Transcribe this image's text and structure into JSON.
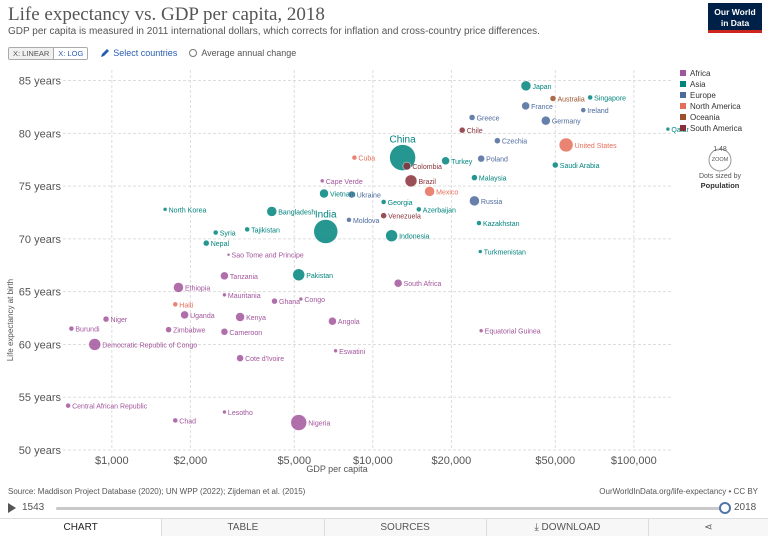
{
  "header": {
    "title": "Life expectancy vs. GDP per capita, 2018",
    "subtitle": "GDP per capita is measured in 2011 international dollars, which corrects for inflation and cross-country price differences.",
    "logo_line1": "Our World",
    "logo_line2": "in Data"
  },
  "controls": {
    "linear_label": "X: LINEAR",
    "log_label": "X: LOG",
    "select_countries": "Select countries",
    "avg_change": "Average annual change"
  },
  "legend": {
    "items": [
      {
        "name": "Africa",
        "color": "#a2559c"
      },
      {
        "name": "Asia",
        "color": "#00847e"
      },
      {
        "name": "Europe",
        "color": "#4c6a9c"
      },
      {
        "name": "North America",
        "color": "#e56e5a"
      },
      {
        "name": "Oceania",
        "color": "#9a5129"
      },
      {
        "name": "South America",
        "color": "#883039"
      }
    ],
    "size_value": "1.48",
    "size_unit": "ZOOM",
    "size_note_line1": "Dots sized by",
    "size_note_line2": "Population"
  },
  "footer": {
    "source": "Source: Maddison Project Database (2020); UN WPP (2022); Zijdeman et al. (2015)",
    "url": "OurWorldInData.org/life-expectancy • CC BY"
  },
  "timeline": {
    "start": "1543",
    "end": "2018"
  },
  "tabs": {
    "chart": "CHART",
    "table": "TABLE",
    "sources": "SOURCES",
    "download": "DOWNLOAD"
  },
  "chart_data": {
    "type": "scatter",
    "xscale": "log",
    "xlabel": "GDP per capita",
    "ylabel": "Life expectancy at birth",
    "xlim": [
      650,
      140000
    ],
    "ylim": [
      50,
      86
    ],
    "xticks": [
      1000,
      2000,
      5000,
      10000,
      20000,
      50000,
      100000
    ],
    "xtick_labels": [
      "$1,000",
      "$2,000",
      "$5,000",
      "$10,000",
      "$20,000",
      "$50,000",
      "$100,000"
    ],
    "yticks": [
      50,
      55,
      60,
      65,
      70,
      75,
      80,
      85
    ],
    "ytick_labels": [
      "50 years",
      "55 years",
      "60 years",
      "65 years",
      "70 years",
      "75 years",
      "80 years",
      "85 years"
    ],
    "grid": true,
    "legend_position": "right",
    "points": [
      {
        "label": "Japan",
        "x": 38600,
        "y": 84.5,
        "region": "Asia",
        "size": 5
      },
      {
        "label": "Australia",
        "x": 49000,
        "y": 83.3,
        "region": "Oceania",
        "size": 3
      },
      {
        "label": "Singapore",
        "x": 68000,
        "y": 83.4,
        "region": "Asia",
        "size": 2.5
      },
      {
        "label": "Ireland",
        "x": 64000,
        "y": 82.2,
        "region": "Europe",
        "size": 2.5
      },
      {
        "label": "France",
        "x": 38500,
        "y": 82.6,
        "region": "Europe",
        "size": 4
      },
      {
        "label": "Germany",
        "x": 46000,
        "y": 81.2,
        "region": "Europe",
        "size": 4.5
      },
      {
        "label": "Greece",
        "x": 24000,
        "y": 81.5,
        "region": "Europe",
        "size": 3
      },
      {
        "label": "Qatar",
        "x": 135000,
        "y": 80.4,
        "region": "Asia",
        "size": 2
      },
      {
        "label": "Chile",
        "x": 22000,
        "y": 80.3,
        "region": "South America",
        "size": 3
      },
      {
        "label": "United States",
        "x": 55000,
        "y": 78.9,
        "region": "North America",
        "size": 7
      },
      {
        "label": "Czechia",
        "x": 30000,
        "y": 79.3,
        "region": "Europe",
        "size": 3
      },
      {
        "label": "China",
        "x": 13000,
        "y": 77.7,
        "region": "Asia",
        "size": 13
      },
      {
        "label": "Cuba",
        "x": 8500,
        "y": 77.7,
        "region": "North America",
        "size": 2.5
      },
      {
        "label": "Turkey",
        "x": 19000,
        "y": 77.4,
        "region": "Asia",
        "size": 4
      },
      {
        "label": "Poland",
        "x": 26000,
        "y": 77.6,
        "region": "Europe",
        "size": 3.5
      },
      {
        "label": "Saudi Arabia",
        "x": 50000,
        "y": 77.0,
        "region": "Asia",
        "size": 3
      },
      {
        "label": "Colombia",
        "x": 13500,
        "y": 76.9,
        "region": "South America",
        "size": 4
      },
      {
        "label": "Brazil",
        "x": 14000,
        "y": 75.5,
        "region": "South America",
        "size": 6
      },
      {
        "label": "Cape Verde",
        "x": 6400,
        "y": 75.5,
        "region": "Africa",
        "size": 2
      },
      {
        "label": "Malaysia",
        "x": 24500,
        "y": 75.8,
        "region": "Asia",
        "size": 3
      },
      {
        "label": "North Korea",
        "x": 1600,
        "y": 72.8,
        "region": "Asia",
        "size": 2
      },
      {
        "label": "Vietnam",
        "x": 6500,
        "y": 74.3,
        "region": "Asia",
        "size": 4.5
      },
      {
        "label": "Ukraine",
        "x": 8300,
        "y": 74.2,
        "region": "Europe",
        "size": 3.5
      },
      {
        "label": "Mexico",
        "x": 16500,
        "y": 74.5,
        "region": "North America",
        "size": 5
      },
      {
        "label": "Russia",
        "x": 24500,
        "y": 73.6,
        "region": "Europe",
        "size": 5
      },
      {
        "label": "Georgia",
        "x": 11000,
        "y": 73.5,
        "region": "Asia",
        "size": 2.5
      },
      {
        "label": "Azerbaijan",
        "x": 15000,
        "y": 72.8,
        "region": "Asia",
        "size": 2.5
      },
      {
        "label": "Bangladesh",
        "x": 4100,
        "y": 72.6,
        "region": "Asia",
        "size": 5
      },
      {
        "label": "Venezuela",
        "x": 11000,
        "y": 72.2,
        "region": "South America",
        "size": 3
      },
      {
        "label": "India",
        "x": 6600,
        "y": 70.7,
        "region": "Asia",
        "size": 12
      },
      {
        "label": "Moldova",
        "x": 8100,
        "y": 71.8,
        "region": "Europe",
        "size": 2.5
      },
      {
        "label": "Indonesia",
        "x": 11800,
        "y": 70.3,
        "region": "Asia",
        "size": 6
      },
      {
        "label": "Kazakhstan",
        "x": 25500,
        "y": 71.5,
        "region": "Asia",
        "size": 2.5
      },
      {
        "label": "Tajikistan",
        "x": 3300,
        "y": 70.9,
        "region": "Asia",
        "size": 2.5
      },
      {
        "label": "Syria",
        "x": 2500,
        "y": 70.6,
        "region": "Asia",
        "size": 2.5
      },
      {
        "label": "Nepal",
        "x": 2300,
        "y": 69.6,
        "region": "Asia",
        "size": 3
      },
      {
        "label": "Turkmenistan",
        "x": 25800,
        "y": 68.8,
        "region": "Asia",
        "size": 2
      },
      {
        "label": "Sao Tome and Principe",
        "x": 2800,
        "y": 68.5,
        "region": "Africa",
        "size": 1.5
      },
      {
        "label": "Pakistan",
        "x": 5200,
        "y": 66.6,
        "region": "Asia",
        "size": 6
      },
      {
        "label": "Tanzania",
        "x": 2700,
        "y": 66.5,
        "region": "Africa",
        "size": 4
      },
      {
        "label": "South Africa",
        "x": 12500,
        "y": 65.8,
        "region": "Africa",
        "size": 4
      },
      {
        "label": "Ethiopia",
        "x": 1800,
        "y": 65.4,
        "region": "Africa",
        "size": 5
      },
      {
        "label": "Haiti",
        "x": 1750,
        "y": 63.8,
        "region": "North America",
        "size": 2.5
      },
      {
        "label": "Mauritania",
        "x": 2700,
        "y": 64.7,
        "region": "Africa",
        "size": 2
      },
      {
        "label": "Ghana",
        "x": 4200,
        "y": 64.1,
        "region": "Africa",
        "size": 3
      },
      {
        "label": "Congo",
        "x": 5300,
        "y": 64.3,
        "region": "Africa",
        "size": 2
      },
      {
        "label": "Niger",
        "x": 950,
        "y": 62.4,
        "region": "Africa",
        "size": 3
      },
      {
        "label": "Uganda",
        "x": 1900,
        "y": 62.8,
        "region": "Africa",
        "size": 4
      },
      {
        "label": "Kenya",
        "x": 3100,
        "y": 62.6,
        "region": "Africa",
        "size": 4.5
      },
      {
        "label": "Burundi",
        "x": 700,
        "y": 61.5,
        "region": "Africa",
        "size": 2.5
      },
      {
        "label": "Angola",
        "x": 7000,
        "y": 62.2,
        "region": "Africa",
        "size": 4
      },
      {
        "label": "Zimbabwe",
        "x": 1650,
        "y": 61.4,
        "region": "Africa",
        "size": 3
      },
      {
        "label": "Cameroon",
        "x": 2700,
        "y": 61.2,
        "region": "Africa",
        "size": 3.5
      },
      {
        "label": "Equatorial Guinea",
        "x": 26000,
        "y": 61.3,
        "region": "Africa",
        "size": 2
      },
      {
        "label": "Democratic Republic of Congo",
        "x": 860,
        "y": 60.0,
        "region": "Africa",
        "size": 6
      },
      {
        "label": "Eswatini",
        "x": 7200,
        "y": 59.4,
        "region": "Africa",
        "size": 2
      },
      {
        "label": "Cote d'Ivoire",
        "x": 3100,
        "y": 58.7,
        "region": "Africa",
        "size": 3.5
      },
      {
        "label": "Central African Republic",
        "x": 680,
        "y": 54.2,
        "region": "Africa",
        "size": 2.5
      },
      {
        "label": "Lesotho",
        "x": 2700,
        "y": 53.6,
        "region": "Africa",
        "size": 2
      },
      {
        "label": "Chad",
        "x": 1750,
        "y": 52.8,
        "region": "Africa",
        "size": 2.5
      },
      {
        "label": "Nigeria",
        "x": 5200,
        "y": 52.6,
        "region": "Africa",
        "size": 8
      }
    ]
  }
}
